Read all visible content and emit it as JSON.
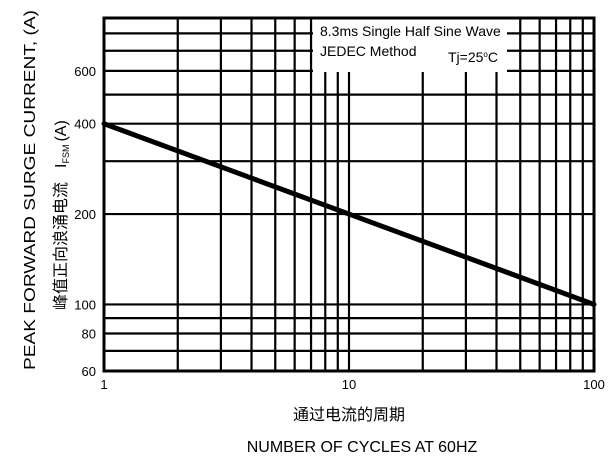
{
  "chart_data": {
    "type": "line",
    "x_scale": "log",
    "y_scale": "log",
    "xlim": [
      1,
      100
    ],
    "ylim": [
      60,
      900
    ],
    "x_ticks": [
      1,
      10,
      100
    ],
    "x_tick_labels": [
      "1",
      "10",
      "100"
    ],
    "y_ticks": [
      60,
      80,
      100,
      200,
      400,
      600
    ],
    "y_tick_labels": [
      "60",
      "80",
      "100",
      "200",
      "400",
      "600"
    ],
    "x_grid": [
      2,
      3,
      4,
      5,
      6,
      7,
      8,
      9,
      20,
      30,
      40,
      50,
      60,
      70,
      80,
      90
    ],
    "y_grid": [
      70,
      90,
      300,
      500,
      700,
      800
    ],
    "grid": true,
    "series": [
      {
        "x": [
          1,
          10,
          100
        ],
        "y": [
          400,
          200,
          100
        ]
      }
    ],
    "xlabel_cn": "通过电流的周期",
    "xlabel": "NUMBER OF CYCLES AT 60HZ",
    "ylabel": "PEAK FORWARD SURGE CURRENT, (A)",
    "ylabel_cn": "峰值正向浪涌电流",
    "ylabel_symbol": "I",
    "ylabel_symbol_sub": "FSM",
    "ylabel_unit": "(A)",
    "annotation": {
      "line1": "8.3ms Single Half Sine Wave",
      "line2": "JEDEC Method",
      "line3_prefix": "Tj=25",
      "line3_sup": "o",
      "line3_suffix": "C",
      "position": "top-right"
    }
  }
}
